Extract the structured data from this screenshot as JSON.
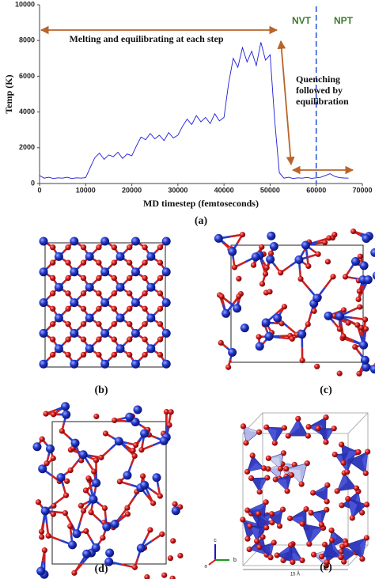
{
  "chart_data": {
    "type": "line",
    "xlabel": "MD timestep (femtoseconds)",
    "ylabel": "Temp (K)",
    "xlim": [
      0,
      70000
    ],
    "ylim": [
      0,
      10000
    ],
    "xticks": [
      0,
      10000,
      20000,
      30000,
      40000,
      50000,
      60000,
      70000
    ],
    "yticks": [
      0,
      2000,
      4000,
      6000,
      8000,
      10000
    ],
    "x": [
      0,
      1000,
      2000,
      3000,
      4000,
      5000,
      6000,
      7000,
      8000,
      9000,
      10000,
      11000,
      12000,
      13000,
      14000,
      15000,
      16000,
      17000,
      18000,
      19000,
      20000,
      21000,
      22000,
      23000,
      24000,
      25000,
      26000,
      27000,
      28000,
      29000,
      30000,
      31000,
      32000,
      33000,
      34000,
      35000,
      36000,
      37000,
      38000,
      39000,
      40000,
      41000,
      42000,
      43000,
      44000,
      45000,
      46000,
      47000,
      48000,
      49000,
      50000,
      51000,
      52000,
      53000,
      54000,
      55000,
      56000,
      57000,
      58000,
      59000,
      60000,
      61000,
      62000,
      63000,
      64000,
      65000,
      66000,
      67000
    ],
    "series": [
      {
        "name": "Temperature",
        "color": "#1c1cd6",
        "values": [
          450,
          300,
          350,
          280,
          320,
          300,
          350,
          280,
          320,
          300,
          330,
          900,
          1450,
          1700,
          1350,
          1600,
          1500,
          1750,
          1400,
          1650,
          1550,
          2100,
          2600,
          2450,
          2800,
          2500,
          2700,
          2400,
          2850,
          2550,
          2700,
          3200,
          3600,
          3300,
          3800,
          3450,
          3700,
          3350,
          3900,
          3500,
          3700,
          5600,
          7000,
          6500,
          7600,
          6800,
          7400,
          6600,
          7900,
          6900,
          7200,
          3500,
          600,
          300,
          350,
          280,
          320,
          300,
          340,
          290,
          320,
          350,
          450,
          550,
          400,
          330,
          310,
          300
        ]
      }
    ],
    "vline": 60000,
    "vline_color": "#2a5bd7",
    "arrow_color": "#b8642a",
    "annotations": [
      "Melting and equilibrating  at each step",
      "NVT",
      "NPT",
      "Quenching",
      "followed by",
      "equilibration"
    ],
    "panel_label": "(a)"
  },
  "panels": [
    "(b)",
    "(c)",
    "(d)",
    "(e)"
  ],
  "axis_triad": [
    "c",
    "b",
    "a"
  ],
  "scale_bar": "15 Å"
}
